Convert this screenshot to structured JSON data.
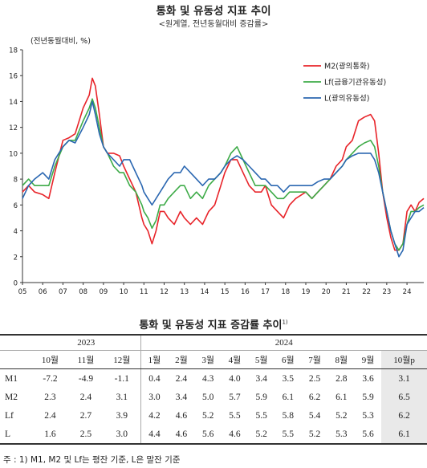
{
  "title": "통화 및 유동성 지표 추이",
  "subtitle": "<원계열, 전년동월대비 증감률>",
  "chart_data": {
    "type": "line",
    "ylabel": "(전년동월대비, %)",
    "ylim": [
      0,
      18
    ],
    "yticks": [
      "0",
      "2",
      "4",
      "6",
      "8",
      "10",
      "12",
      "14",
      "16",
      "18"
    ],
    "xlim": [
      2005.0,
      2024.83
    ],
    "xticks": [
      "05",
      "06",
      "07",
      "08",
      "09",
      "10",
      "11",
      "12",
      "13",
      "14",
      "15",
      "16",
      "17",
      "18",
      "19",
      "20",
      "21",
      "22",
      "23",
      "24"
    ],
    "legend_position": "top-right",
    "series": [
      {
        "name": "M2(광의통화)",
        "color": "#e8242a",
        "x": [
          2005.0,
          2005.3,
          2005.6,
          2006.0,
          2006.3,
          2006.6,
          2007.0,
          2007.3,
          2007.6,
          2008.0,
          2008.3,
          2008.45,
          2008.6,
          2008.8,
          2009.0,
          2009.2,
          2009.5,
          2009.8,
          2010.0,
          2010.3,
          2010.6,
          2010.9,
          2011.0,
          2011.2,
          2011.4,
          2011.6,
          2011.8,
          2012.0,
          2012.2,
          2012.5,
          2012.8,
          2013.0,
          2013.3,
          2013.6,
          2013.9,
          2014.2,
          2014.5,
          2014.8,
          2015.0,
          2015.3,
          2015.6,
          2015.9,
          2016.2,
          2016.5,
          2016.8,
          2017.0,
          2017.3,
          2017.6,
          2017.9,
          2018.2,
          2018.5,
          2018.8,
          2019.0,
          2019.3,
          2019.6,
          2019.9,
          2020.2,
          2020.5,
          2020.8,
          2021.0,
          2021.3,
          2021.6,
          2021.9,
          2022.2,
          2022.4,
          2022.6,
          2022.8,
          2023.0,
          2023.2,
          2023.4,
          2023.6,
          2023.8,
          2024.0,
          2024.2,
          2024.4,
          2024.6,
          2024.83
        ],
        "y": [
          7.0,
          7.5,
          7.0,
          6.8,
          6.5,
          8.5,
          11.0,
          11.2,
          11.5,
          13.5,
          14.5,
          15.8,
          15.2,
          13.0,
          10.5,
          10.0,
          10.0,
          9.8,
          9.0,
          8.0,
          7.0,
          5.0,
          4.5,
          4.0,
          3.0,
          4.0,
          5.5,
          5.5,
          5.0,
          4.5,
          5.5,
          5.0,
          4.5,
          5.0,
          4.5,
          5.5,
          6.0,
          7.5,
          8.5,
          9.5,
          9.5,
          8.5,
          7.5,
          7.0,
          7.0,
          7.5,
          6.0,
          5.5,
          5.0,
          6.0,
          6.5,
          6.8,
          7.0,
          6.5,
          7.0,
          7.5,
          8.0,
          9.0,
          9.5,
          10.5,
          11.0,
          12.5,
          12.8,
          13.0,
          12.5,
          10.0,
          7.0,
          5.0,
          3.5,
          2.5,
          2.5,
          3.0,
          5.5,
          6.0,
          5.5,
          6.2,
          6.5
        ]
      },
      {
        "name": "Lf(금융기관유동성)",
        "color": "#3eab48",
        "x": [
          2005.0,
          2005.3,
          2005.6,
          2006.0,
          2006.3,
          2006.6,
          2007.0,
          2007.3,
          2007.6,
          2008.0,
          2008.3,
          2008.45,
          2008.6,
          2008.8,
          2009.0,
          2009.2,
          2009.5,
          2009.8,
          2010.0,
          2010.3,
          2010.6,
          2010.9,
          2011.0,
          2011.2,
          2011.4,
          2011.6,
          2011.8,
          2012.0,
          2012.2,
          2012.5,
          2012.8,
          2013.0,
          2013.3,
          2013.6,
          2013.9,
          2014.2,
          2014.5,
          2014.8,
          2015.0,
          2015.3,
          2015.6,
          2015.9,
          2016.2,
          2016.5,
          2016.8,
          2017.0,
          2017.3,
          2017.6,
          2017.9,
          2018.2,
          2018.5,
          2018.8,
          2019.0,
          2019.3,
          2019.6,
          2019.9,
          2020.2,
          2020.5,
          2020.8,
          2021.0,
          2021.3,
          2021.6,
          2021.9,
          2022.2,
          2022.4,
          2022.6,
          2022.8,
          2023.0,
          2023.2,
          2023.4,
          2023.6,
          2023.8,
          2024.0,
          2024.2,
          2024.4,
          2024.6,
          2024.83
        ],
        "y": [
          7.5,
          8.0,
          7.5,
          7.5,
          7.5,
          9.0,
          10.5,
          11.0,
          11.0,
          12.5,
          13.5,
          14.2,
          13.5,
          12.0,
          10.5,
          10.0,
          9.0,
          8.5,
          8.5,
          7.5,
          7.0,
          6.0,
          5.5,
          5.0,
          4.2,
          4.8,
          6.0,
          6.0,
          6.5,
          7.0,
          7.5,
          7.5,
          6.5,
          7.0,
          6.5,
          7.5,
          8.0,
          8.5,
          9.0,
          10.0,
          10.5,
          9.5,
          8.5,
          7.5,
          7.5,
          7.5,
          7.0,
          6.5,
          6.5,
          7.0,
          7.0,
          7.0,
          7.0,
          6.5,
          7.0,
          7.5,
          8.0,
          8.5,
          9.0,
          9.5,
          10.0,
          10.5,
          10.8,
          11.0,
          10.5,
          9.0,
          7.0,
          5.5,
          4.0,
          3.0,
          2.5,
          3.0,
          4.5,
          5.5,
          5.5,
          5.8,
          6.0
        ]
      },
      {
        "name": "L(광의유동성)",
        "color": "#2b67b1",
        "x": [
          2005.0,
          2005.3,
          2005.6,
          2006.0,
          2006.3,
          2006.6,
          2007.0,
          2007.3,
          2007.6,
          2008.0,
          2008.3,
          2008.45,
          2008.6,
          2008.8,
          2009.0,
          2009.2,
          2009.5,
          2009.8,
          2010.0,
          2010.3,
          2010.6,
          2010.9,
          2011.0,
          2011.2,
          2011.4,
          2011.6,
          2011.8,
          2012.0,
          2012.2,
          2012.5,
          2012.8,
          2013.0,
          2013.3,
          2013.6,
          2013.9,
          2014.2,
          2014.5,
          2014.8,
          2015.0,
          2015.3,
          2015.6,
          2015.9,
          2016.2,
          2016.5,
          2016.8,
          2017.0,
          2017.3,
          2017.6,
          2017.9,
          2018.2,
          2018.5,
          2018.8,
          2019.0,
          2019.3,
          2019.6,
          2019.9,
          2020.2,
          2020.5,
          2020.8,
          2021.0,
          2021.3,
          2021.6,
          2021.9,
          2022.2,
          2022.4,
          2022.6,
          2022.8,
          2023.0,
          2023.2,
          2023.4,
          2023.6,
          2023.8,
          2024.0,
          2024.2,
          2024.4,
          2024.6,
          2024.83
        ],
        "y": [
          6.5,
          7.5,
          8.0,
          8.5,
          8.0,
          9.5,
          10.5,
          11.0,
          10.8,
          12.0,
          13.0,
          14.0,
          13.0,
          11.5,
          10.5,
          10.0,
          9.5,
          9.0,
          9.5,
          9.5,
          8.5,
          7.5,
          7.0,
          6.5,
          6.0,
          6.5,
          7.0,
          7.5,
          8.0,
          8.5,
          8.5,
          9.0,
          8.5,
          8.0,
          7.5,
          8.0,
          8.0,
          8.5,
          9.0,
          9.5,
          9.8,
          9.5,
          9.0,
          8.5,
          8.0,
          8.0,
          7.5,
          7.5,
          7.0,
          7.5,
          7.5,
          7.5,
          7.5,
          7.5,
          7.8,
          8.0,
          8.0,
          8.5,
          9.0,
          9.5,
          9.8,
          10.0,
          10.0,
          10.0,
          9.5,
          8.5,
          7.0,
          5.5,
          4.0,
          3.0,
          2.0,
          2.5,
          4.5,
          5.0,
          5.5,
          5.5,
          5.8
        ]
      }
    ]
  },
  "table": {
    "title": "통화 및 유동성 지표 증감률 추이",
    "title_sup": "1)",
    "years": [
      "2023",
      "2024"
    ],
    "months": [
      "10월",
      "11월",
      "12월",
      "1월",
      "2월",
      "3월",
      "4월",
      "5월",
      "6월",
      "7월",
      "8월",
      "9월",
      "10월p"
    ],
    "rows": [
      {
        "label": "M1",
        "values": [
          "-7.2",
          "-4.9",
          "-1.1",
          "0.4",
          "2.4",
          "4.3",
          "4.0",
          "3.4",
          "3.5",
          "2.5",
          "2.8",
          "3.6",
          "3.1"
        ]
      },
      {
        "label": "M2",
        "values": [
          "2.3",
          "2.4",
          "3.1",
          "3.0",
          "3.4",
          "5.0",
          "5.7",
          "5.9",
          "6.1",
          "6.2",
          "6.1",
          "5.9",
          "6.5"
        ]
      },
      {
        "label": "Lf",
        "values": [
          "2.4",
          "2.7",
          "3.9",
          "4.2",
          "4.6",
          "5.2",
          "5.5",
          "5.5",
          "5.8",
          "5.4",
          "5.2",
          "5.3",
          "6.2"
        ]
      },
      {
        "label": "L",
        "values": [
          "1.6",
          "2.5",
          "3.0",
          "4.4",
          "4.6",
          "5.6",
          "4.6",
          "5.2",
          "5.5",
          "5.2",
          "5.3",
          "5.6",
          "6.1"
        ]
      }
    ]
  },
  "footnote": "주 : 1) M1, M2 및 Lf는 평잔 기준, L은 말잔 기준"
}
